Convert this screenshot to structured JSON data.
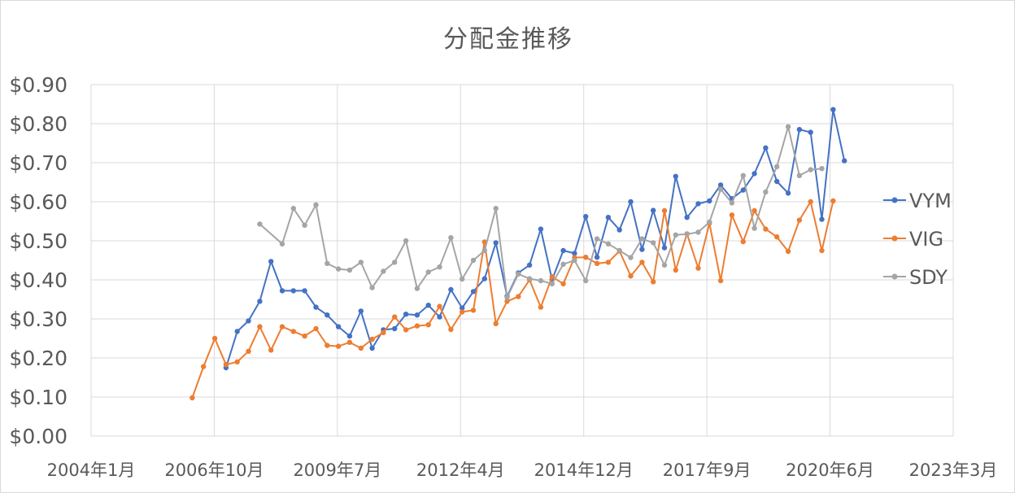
{
  "title": "分配金推移",
  "chart_data": {
    "type": "line",
    "title": "分配金推移",
    "y_ticks": [
      "$0.00",
      "$0.10",
      "$0.20",
      "$0.30",
      "$0.40",
      "$0.50",
      "$0.60",
      "$0.70",
      "$0.80",
      "$0.90"
    ],
    "x_ticks": [
      "2004年1月",
      "2006年10月",
      "2009年7月",
      "2012年4月",
      "2014年12月",
      "2017年9月",
      "2020年6月",
      "2023年3月"
    ],
    "ylim": [
      0,
      0.9
    ],
    "xlim": [
      2004.0,
      2023.17
    ],
    "grid": true,
    "legend": "right",
    "series": [
      {
        "name": "VYM",
        "color": "#4472C4",
        "points": [
          [
            2007.0,
            0.175
          ],
          [
            2007.25,
            0.268
          ],
          [
            2007.5,
            0.295
          ],
          [
            2007.75,
            0.345
          ],
          [
            2008.0,
            0.447
          ],
          [
            2008.25,
            0.372
          ],
          [
            2008.5,
            0.372
          ],
          [
            2008.75,
            0.372
          ],
          [
            2009.0,
            0.33
          ],
          [
            2009.25,
            0.31
          ],
          [
            2009.5,
            0.28
          ],
          [
            2009.75,
            0.256
          ],
          [
            2010.0,
            0.32
          ],
          [
            2010.25,
            0.225
          ],
          [
            2010.5,
            0.272
          ],
          [
            2010.75,
            0.275
          ],
          [
            2011.0,
            0.312
          ],
          [
            2011.25,
            0.31
          ],
          [
            2011.5,
            0.335
          ],
          [
            2011.75,
            0.305
          ],
          [
            2012.0,
            0.375
          ],
          [
            2012.25,
            0.328
          ],
          [
            2012.5,
            0.37
          ],
          [
            2012.75,
            0.403
          ],
          [
            2013.0,
            0.495
          ],
          [
            2013.25,
            0.358
          ],
          [
            2013.5,
            0.418
          ],
          [
            2013.75,
            0.438
          ],
          [
            2014.0,
            0.53
          ],
          [
            2014.25,
            0.4
          ],
          [
            2014.5,
            0.475
          ],
          [
            2014.75,
            0.468
          ],
          [
            2015.0,
            0.562
          ],
          [
            2015.25,
            0.458
          ],
          [
            2015.5,
            0.56
          ],
          [
            2015.75,
            0.528
          ],
          [
            2016.0,
            0.6
          ],
          [
            2016.25,
            0.478
          ],
          [
            2016.5,
            0.578
          ],
          [
            2016.75,
            0.482
          ],
          [
            2017.0,
            0.665
          ],
          [
            2017.25,
            0.56
          ],
          [
            2017.5,
            0.595
          ],
          [
            2017.75,
            0.602
          ],
          [
            2018.0,
            0.643
          ],
          [
            2018.25,
            0.608
          ],
          [
            2018.5,
            0.63
          ],
          [
            2018.75,
            0.672
          ],
          [
            2019.0,
            0.738
          ],
          [
            2019.25,
            0.652
          ],
          [
            2019.5,
            0.622
          ],
          [
            2019.75,
            0.785
          ],
          [
            2020.0,
            0.778
          ],
          [
            2020.25,
            0.555
          ],
          [
            2020.5,
            0.836
          ],
          [
            2020.75,
            0.705
          ]
        ]
      },
      {
        "name": "VIG",
        "color": "#ED7D31",
        "points": [
          [
            2006.25,
            0.098
          ],
          [
            2006.5,
            0.178
          ],
          [
            2006.75,
            0.25
          ],
          [
            2007.0,
            0.183
          ],
          [
            2007.25,
            0.19
          ],
          [
            2007.5,
            0.217
          ],
          [
            2007.75,
            0.28
          ],
          [
            2008.0,
            0.22
          ],
          [
            2008.25,
            0.28
          ],
          [
            2008.5,
            0.268
          ],
          [
            2008.75,
            0.256
          ],
          [
            2009.0,
            0.275
          ],
          [
            2009.25,
            0.232
          ],
          [
            2009.5,
            0.23
          ],
          [
            2009.75,
            0.24
          ],
          [
            2010.0,
            0.225
          ],
          [
            2010.25,
            0.248
          ],
          [
            2010.5,
            0.265
          ],
          [
            2010.75,
            0.305
          ],
          [
            2011.0,
            0.272
          ],
          [
            2011.25,
            0.282
          ],
          [
            2011.5,
            0.285
          ],
          [
            2011.75,
            0.332
          ],
          [
            2012.0,
            0.273
          ],
          [
            2012.25,
            0.318
          ],
          [
            2012.5,
            0.322
          ],
          [
            2012.75,
            0.497
          ],
          [
            2013.0,
            0.288
          ],
          [
            2013.25,
            0.345
          ],
          [
            2013.5,
            0.357
          ],
          [
            2013.75,
            0.4
          ],
          [
            2014.0,
            0.33
          ],
          [
            2014.25,
            0.408
          ],
          [
            2014.5,
            0.39
          ],
          [
            2014.75,
            0.457
          ],
          [
            2015.0,
            0.458
          ],
          [
            2015.25,
            0.442
          ],
          [
            2015.5,
            0.445
          ],
          [
            2015.75,
            0.474
          ],
          [
            2016.0,
            0.41
          ],
          [
            2016.25,
            0.445
          ],
          [
            2016.5,
            0.395
          ],
          [
            2016.75,
            0.577
          ],
          [
            2017.0,
            0.425
          ],
          [
            2017.25,
            0.518
          ],
          [
            2017.5,
            0.43
          ],
          [
            2017.75,
            0.545
          ],
          [
            2018.0,
            0.398
          ],
          [
            2018.25,
            0.566
          ],
          [
            2018.5,
            0.498
          ],
          [
            2018.75,
            0.577
          ],
          [
            2019.0,
            0.53
          ],
          [
            2019.25,
            0.51
          ],
          [
            2019.5,
            0.473
          ],
          [
            2019.75,
            0.553
          ],
          [
            2020.0,
            0.6
          ],
          [
            2020.25,
            0.475
          ],
          [
            2020.5,
            0.602
          ]
        ]
      },
      {
        "name": "SDY",
        "color": "#A5A5A5",
        "points": [
          [
            2007.75,
            0.543
          ],
          [
            2008.25,
            0.492
          ],
          [
            2008.5,
            0.583
          ],
          [
            2008.75,
            0.54
          ],
          [
            2009.0,
            0.592
          ],
          [
            2009.25,
            0.442
          ],
          [
            2009.5,
            0.428
          ],
          [
            2009.75,
            0.425
          ],
          [
            2010.0,
            0.445
          ],
          [
            2010.25,
            0.38
          ],
          [
            2010.5,
            0.422
          ],
          [
            2010.75,
            0.445
          ],
          [
            2011.0,
            0.5
          ],
          [
            2011.25,
            0.378
          ],
          [
            2011.5,
            0.42
          ],
          [
            2011.75,
            0.433
          ],
          [
            2012.0,
            0.508
          ],
          [
            2012.25,
            0.402
          ],
          [
            2012.5,
            0.45
          ],
          [
            2012.75,
            0.475
          ],
          [
            2013.0,
            0.583
          ],
          [
            2013.25,
            0.355
          ],
          [
            2013.5,
            0.415
          ],
          [
            2013.75,
            0.403
          ],
          [
            2014.0,
            0.398
          ],
          [
            2014.25,
            0.39
          ],
          [
            2014.5,
            0.44
          ],
          [
            2014.75,
            0.45
          ],
          [
            2015.0,
            0.398
          ],
          [
            2015.25,
            0.505
          ],
          [
            2015.5,
            0.492
          ],
          [
            2015.75,
            0.475
          ],
          [
            2016.0,
            0.457
          ],
          [
            2016.25,
            0.505
          ],
          [
            2016.5,
            0.495
          ],
          [
            2016.75,
            0.438
          ],
          [
            2017.0,
            0.515
          ],
          [
            2017.25,
            0.517
          ],
          [
            2017.5,
            0.522
          ],
          [
            2017.75,
            0.548
          ],
          [
            2018.0,
            0.632
          ],
          [
            2018.25,
            0.597
          ],
          [
            2018.5,
            0.667
          ],
          [
            2018.75,
            0.532
          ],
          [
            2019.0,
            0.625
          ],
          [
            2019.25,
            0.69
          ],
          [
            2019.5,
            0.792
          ],
          [
            2019.75,
            0.667
          ],
          [
            2020.0,
            0.682
          ],
          [
            2020.25,
            0.685
          ]
        ]
      }
    ]
  }
}
